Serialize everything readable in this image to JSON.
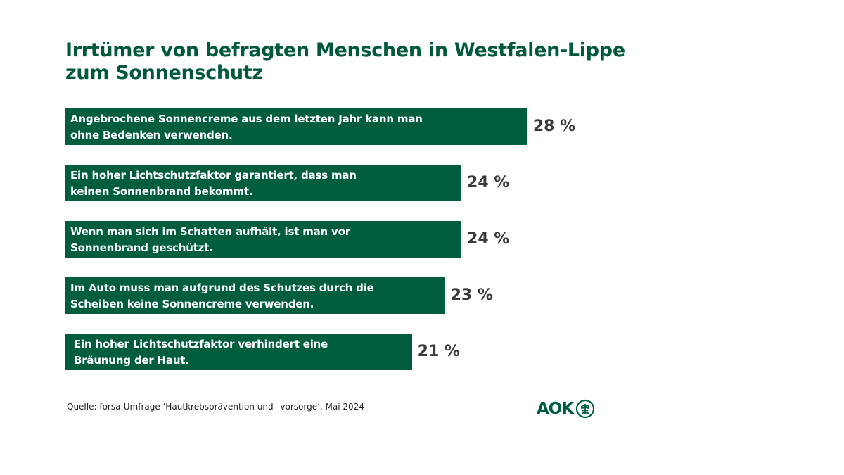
{
  "chart_data": {
    "type": "bar",
    "orientation": "horizontal",
    "title_lines": [
      "Irrtümer von befragten Menschen in Westfalen-Lippe",
      "zum Sonnenschutz"
    ],
    "categories": [
      [
        "Angebrochene Sonnencreme aus dem letzten Jahr kann man",
        "ohne Bedenken verwenden."
      ],
      [
        "Ein hoher Lichtschutzfaktor garantiert, dass man",
        "keinen Sonnenbrand bekommt."
      ],
      [
        "Wenn man sich im Schatten aufhält, ist man vor",
        "Sonnenbrand geschützt."
      ],
      [
        "Im Auto muss man aufgrund des Schutzes durch die",
        "Scheiben keine Sonnencreme verwenden."
      ],
      [
        "Ein hoher Lichtschutzfaktor verhindert eine",
        "Bräunung der Haut."
      ]
    ],
    "values": [
      28,
      24,
      24,
      23,
      21
    ],
    "value_labels": [
      "28 %",
      "24 %",
      "24 %",
      "23 %",
      "21 %"
    ],
    "unit": "%",
    "bar_color": "#005e3f",
    "grid": false,
    "axes_visible": false
  },
  "source": "Quelle: forsa-Umfrage  ‘Hautkrebsprävention und –vorsorge‘, Mai 2024",
  "logo": {
    "text": "AOK",
    "icon": "aok-tree-logo-icon",
    "color": "#005e3f"
  }
}
